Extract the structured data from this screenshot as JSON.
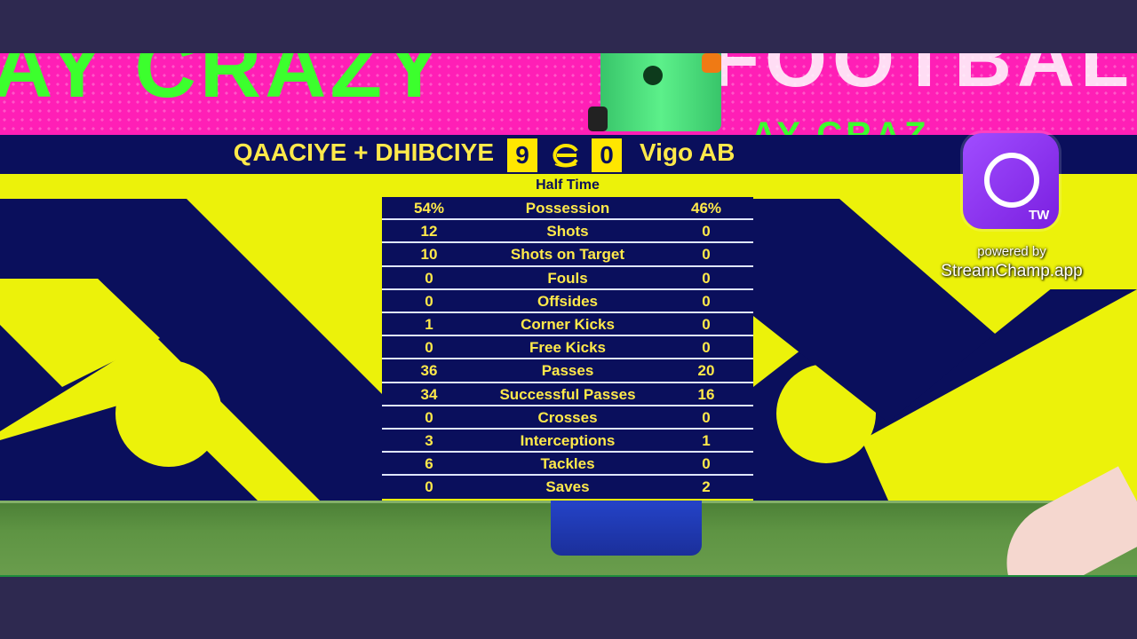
{
  "scoreboard": {
    "home_team": "QAACIYE + DHIBCIYE",
    "home_score": "9",
    "away_score": "0",
    "away_team": "Vigo AB",
    "period": "Half Time"
  },
  "stats": [
    {
      "label": "Possession",
      "home": "54%",
      "away": "46%"
    },
    {
      "label": "Shots",
      "home": "12",
      "away": "0"
    },
    {
      "label": "Shots on Target",
      "home": "10",
      "away": "0"
    },
    {
      "label": "Fouls",
      "home": "0",
      "away": "0"
    },
    {
      "label": "Offsides",
      "home": "0",
      "away": "0"
    },
    {
      "label": "Corner Kicks",
      "home": "1",
      "away": "0"
    },
    {
      "label": "Free Kicks",
      "home": "0",
      "away": "0"
    },
    {
      "label": "Passes",
      "home": "36",
      "away": "20"
    },
    {
      "label": "Successful Passes",
      "home": "34",
      "away": "16"
    },
    {
      "label": "Crosses",
      "home": "0",
      "away": "0"
    },
    {
      "label": "Interceptions",
      "home": "3",
      "away": "1"
    },
    {
      "label": "Tackles",
      "home": "6",
      "away": "0"
    },
    {
      "label": "Saves",
      "home": "0",
      "away": "2"
    }
  ],
  "overlay": {
    "badge": "TW",
    "powered_by": "powered by",
    "app_name": "StreamChamp.app"
  },
  "colors": {
    "navy": "#0a0f5c",
    "yellow": "#ecf20a",
    "magenta": "#ff1fb6",
    "stat_text": "#ffe94a"
  }
}
